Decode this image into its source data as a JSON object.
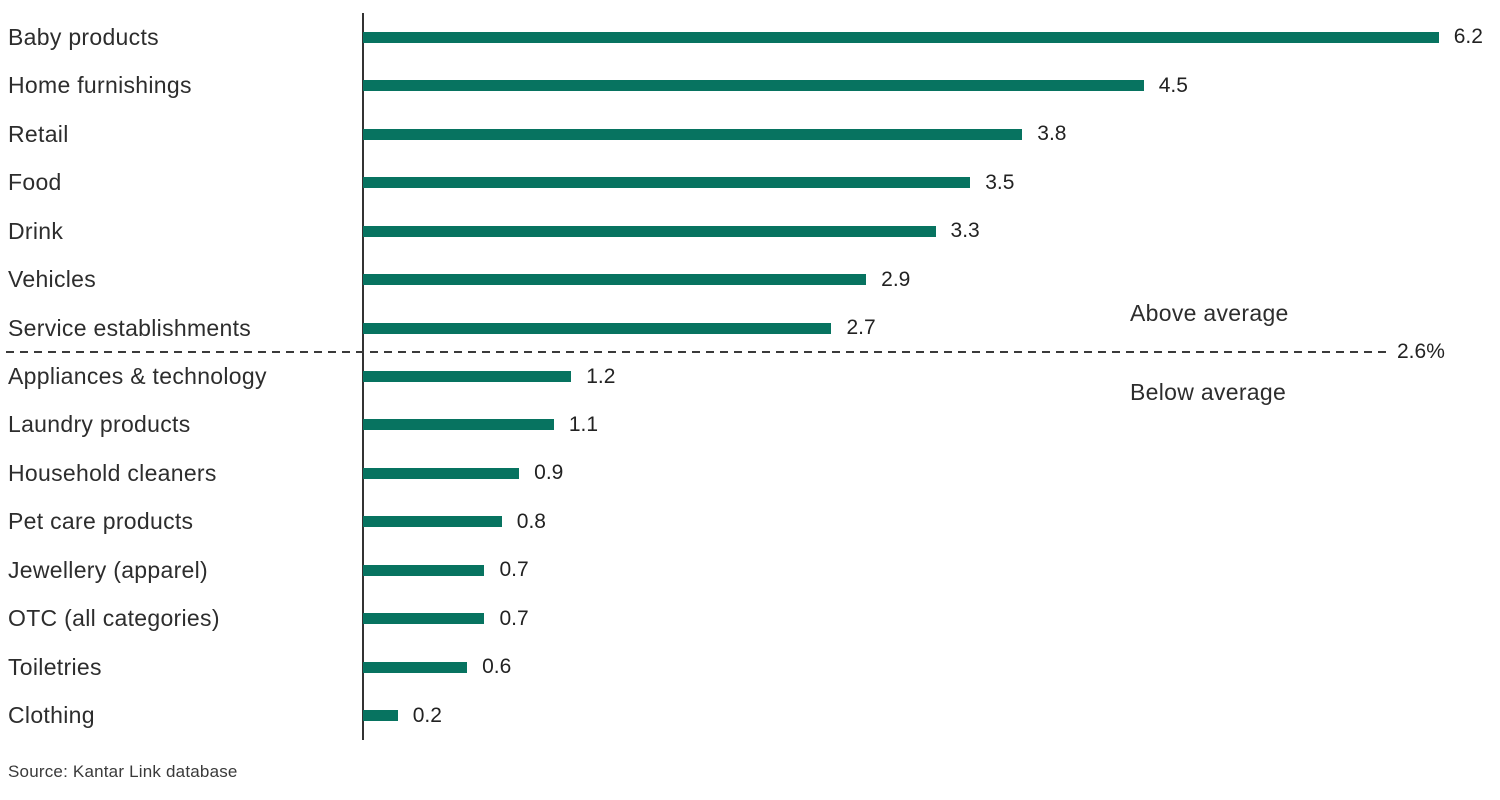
{
  "chart_data": {
    "type": "bar",
    "orientation": "horizontal",
    "title": "",
    "xlabel": "",
    "ylabel": "",
    "xlim": [
      0,
      6.5
    ],
    "grid": false,
    "bar_color": "#077360",
    "axis_color": "#333333",
    "categories": [
      "Baby products",
      "Home furnishings",
      "Retail",
      "Food",
      "Drink",
      "Vehicles",
      "Service establishments",
      "Appliances & technology",
      "Laundry products",
      "Household cleaners",
      "Pet care products",
      "Jewellery (apparel)",
      "OTC (all categories)",
      "Toiletries",
      "Clothing"
    ],
    "values": [
      6.2,
      4.5,
      3.8,
      3.5,
      3.3,
      2.9,
      2.7,
      1.2,
      1.1,
      0.9,
      0.8,
      0.7,
      0.7,
      0.6,
      0.2
    ],
    "average_line": {
      "value": 2.6,
      "value_label": "2.6%",
      "above_label": "Above average",
      "below_label": "Below average",
      "rows_above_count": 7
    }
  },
  "source": {
    "text": "Source: Kantar Link database"
  }
}
